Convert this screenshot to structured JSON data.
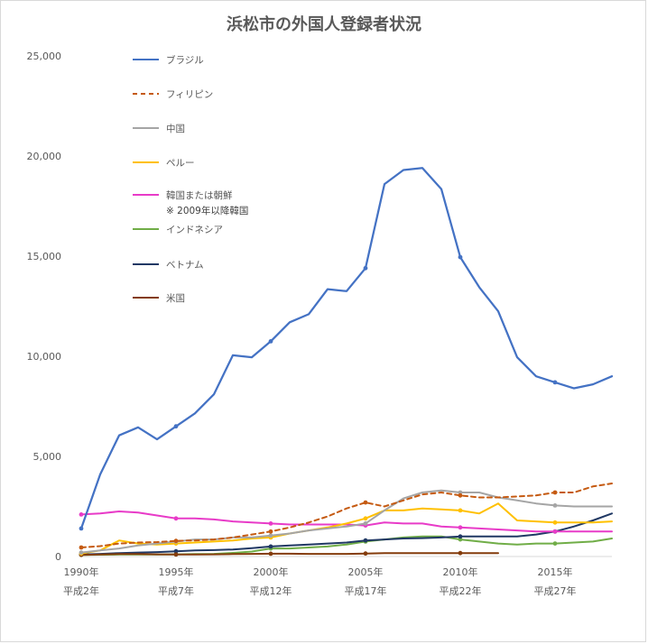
{
  "chart_data": {
    "type": "line",
    "title": "浜松市の外国人登録者状況",
    "xlabel": "",
    "ylabel": "",
    "ylim": [
      0,
      25000
    ],
    "y_ticks": [
      "0",
      "5,000",
      "10,000",
      "15,000",
      "20,000",
      "25,000"
    ],
    "y_tick_values": [
      0,
      5000,
      10000,
      15000,
      20000,
      25000
    ],
    "x_range": [
      1990,
      2018
    ],
    "x_tick_years": [
      1990,
      1995,
      2000,
      2005,
      2010,
      2015
    ],
    "x_ticks_row1": [
      "1990年",
      "1995年",
      "2000年",
      "2005年",
      "2010年",
      "2015年"
    ],
    "x_ticks_row2": [
      "平成2年",
      "平成7年",
      "平成12年",
      "平成17年",
      "平成22年",
      "平成27年"
    ],
    "grid": false,
    "legend_position": "top-left",
    "legend_note": "※ 2009年以降韓国",
    "x": [
      1990,
      1991,
      1992,
      1993,
      1994,
      1995,
      1996,
      1997,
      1998,
      1999,
      2000,
      2001,
      2002,
      2003,
      2004,
      2005,
      2006,
      2007,
      2008,
      2009,
      2010,
      2011,
      2012,
      2013,
      2014,
      2015,
      2016,
      2017,
      2018
    ],
    "series": [
      {
        "name": "ブラジル",
        "color": "#4472c4",
        "dash": "solid",
        "values": [
          1400,
          4100,
          6050,
          6450,
          5850,
          6500,
          7150,
          8100,
          10050,
          9950,
          10750,
          11700,
          12100,
          13350,
          13250,
          14400,
          18600,
          19300,
          19400,
          18350,
          14950,
          13450,
          12250,
          9950,
          9000,
          8700,
          8400,
          8600,
          9000
        ]
      },
      {
        "name": "フィリピン",
        "color": "#c55a11",
        "dash": "dashed",
        "values": [
          450,
          520,
          650,
          700,
          720,
          780,
          800,
          850,
          950,
          1100,
          1250,
          1450,
          1700,
          2000,
          2400,
          2700,
          2500,
          2800,
          3100,
          3200,
          3050,
          2950,
          2950,
          3000,
          3050,
          3200,
          3200,
          3500,
          3650
        ]
      },
      {
        "name": "中国",
        "color": "#a5a5a5",
        "dash": "solid",
        "values": [
          200,
          300,
          400,
          550,
          650,
          750,
          850,
          850,
          950,
          950,
          1050,
          1150,
          1300,
          1400,
          1500,
          1650,
          2300,
          2900,
          3200,
          3300,
          3200,
          3200,
          2950,
          2800,
          2650,
          2550,
          2500,
          2500,
          2500
        ]
      },
      {
        "name": "ペルー",
        "color": "#ffc000",
        "dash": "solid",
        "values": [
          150,
          300,
          800,
          650,
          600,
          650,
          700,
          750,
          800,
          900,
          950,
          1150,
          1300,
          1450,
          1650,
          1900,
          2300,
          2300,
          2400,
          2350,
          2300,
          2150,
          2650,
          1800,
          1750,
          1700,
          1700,
          1700,
          1750
        ]
      },
      {
        "name": "韓国または朝鮮",
        "color": "#e83bc8",
        "dash": "solid",
        "values": [
          2100,
          2150,
          2250,
          2200,
          2050,
          1900,
          1900,
          1850,
          1750,
          1700,
          1650,
          1600,
          1600,
          1600,
          1600,
          1550,
          1700,
          1650,
          1650,
          1500,
          1450,
          1400,
          1350,
          1300,
          1250,
          1250,
          1250,
          1250,
          1250
        ]
      },
      {
        "name": "インドネシア",
        "color": "#70ad47",
        "dash": "solid",
        "values": [
          80,
          90,
          100,
          100,
          100,
          110,
          120,
          130,
          180,
          250,
          400,
          400,
          450,
          500,
          600,
          750,
          850,
          950,
          1000,
          1000,
          850,
          750,
          650,
          600,
          650,
          650,
          700,
          750,
          900
        ]
      },
      {
        "name": "ベトナム",
        "color": "#203864",
        "dash": "solid",
        "values": [
          100,
          130,
          170,
          200,
          220,
          260,
          300,
          320,
          350,
          420,
          500,
          550,
          600,
          650,
          700,
          800,
          850,
          900,
          920,
          950,
          1000,
          1000,
          1000,
          1000,
          1100,
          1250,
          1500,
          1800,
          2150
        ]
      },
      {
        "name": "米国",
        "color": "#843c0c",
        "dash": "solid",
        "values": [
          80,
          100,
          120,
          120,
          110,
          100,
          100,
          110,
          120,
          130,
          140,
          140,
          130,
          130,
          130,
          150,
          170,
          170,
          170,
          170,
          170,
          170,
          170,
          null,
          null,
          null,
          null,
          null,
          null
        ]
      }
    ]
  }
}
